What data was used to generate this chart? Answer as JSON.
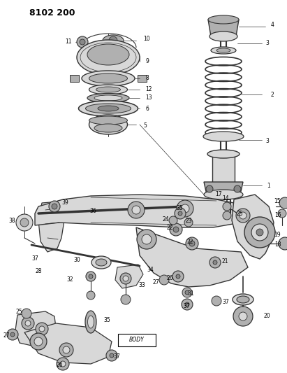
{
  "title": "8102 200",
  "bg_color": "#ffffff",
  "fg_color": "#000000",
  "fig_width": 4.11,
  "fig_height": 5.33,
  "dpi": 100,
  "line_color": "#333333",
  "fill_light": "#d8d8d8",
  "fill_mid": "#b0b0b0",
  "fill_dark": "#888888"
}
